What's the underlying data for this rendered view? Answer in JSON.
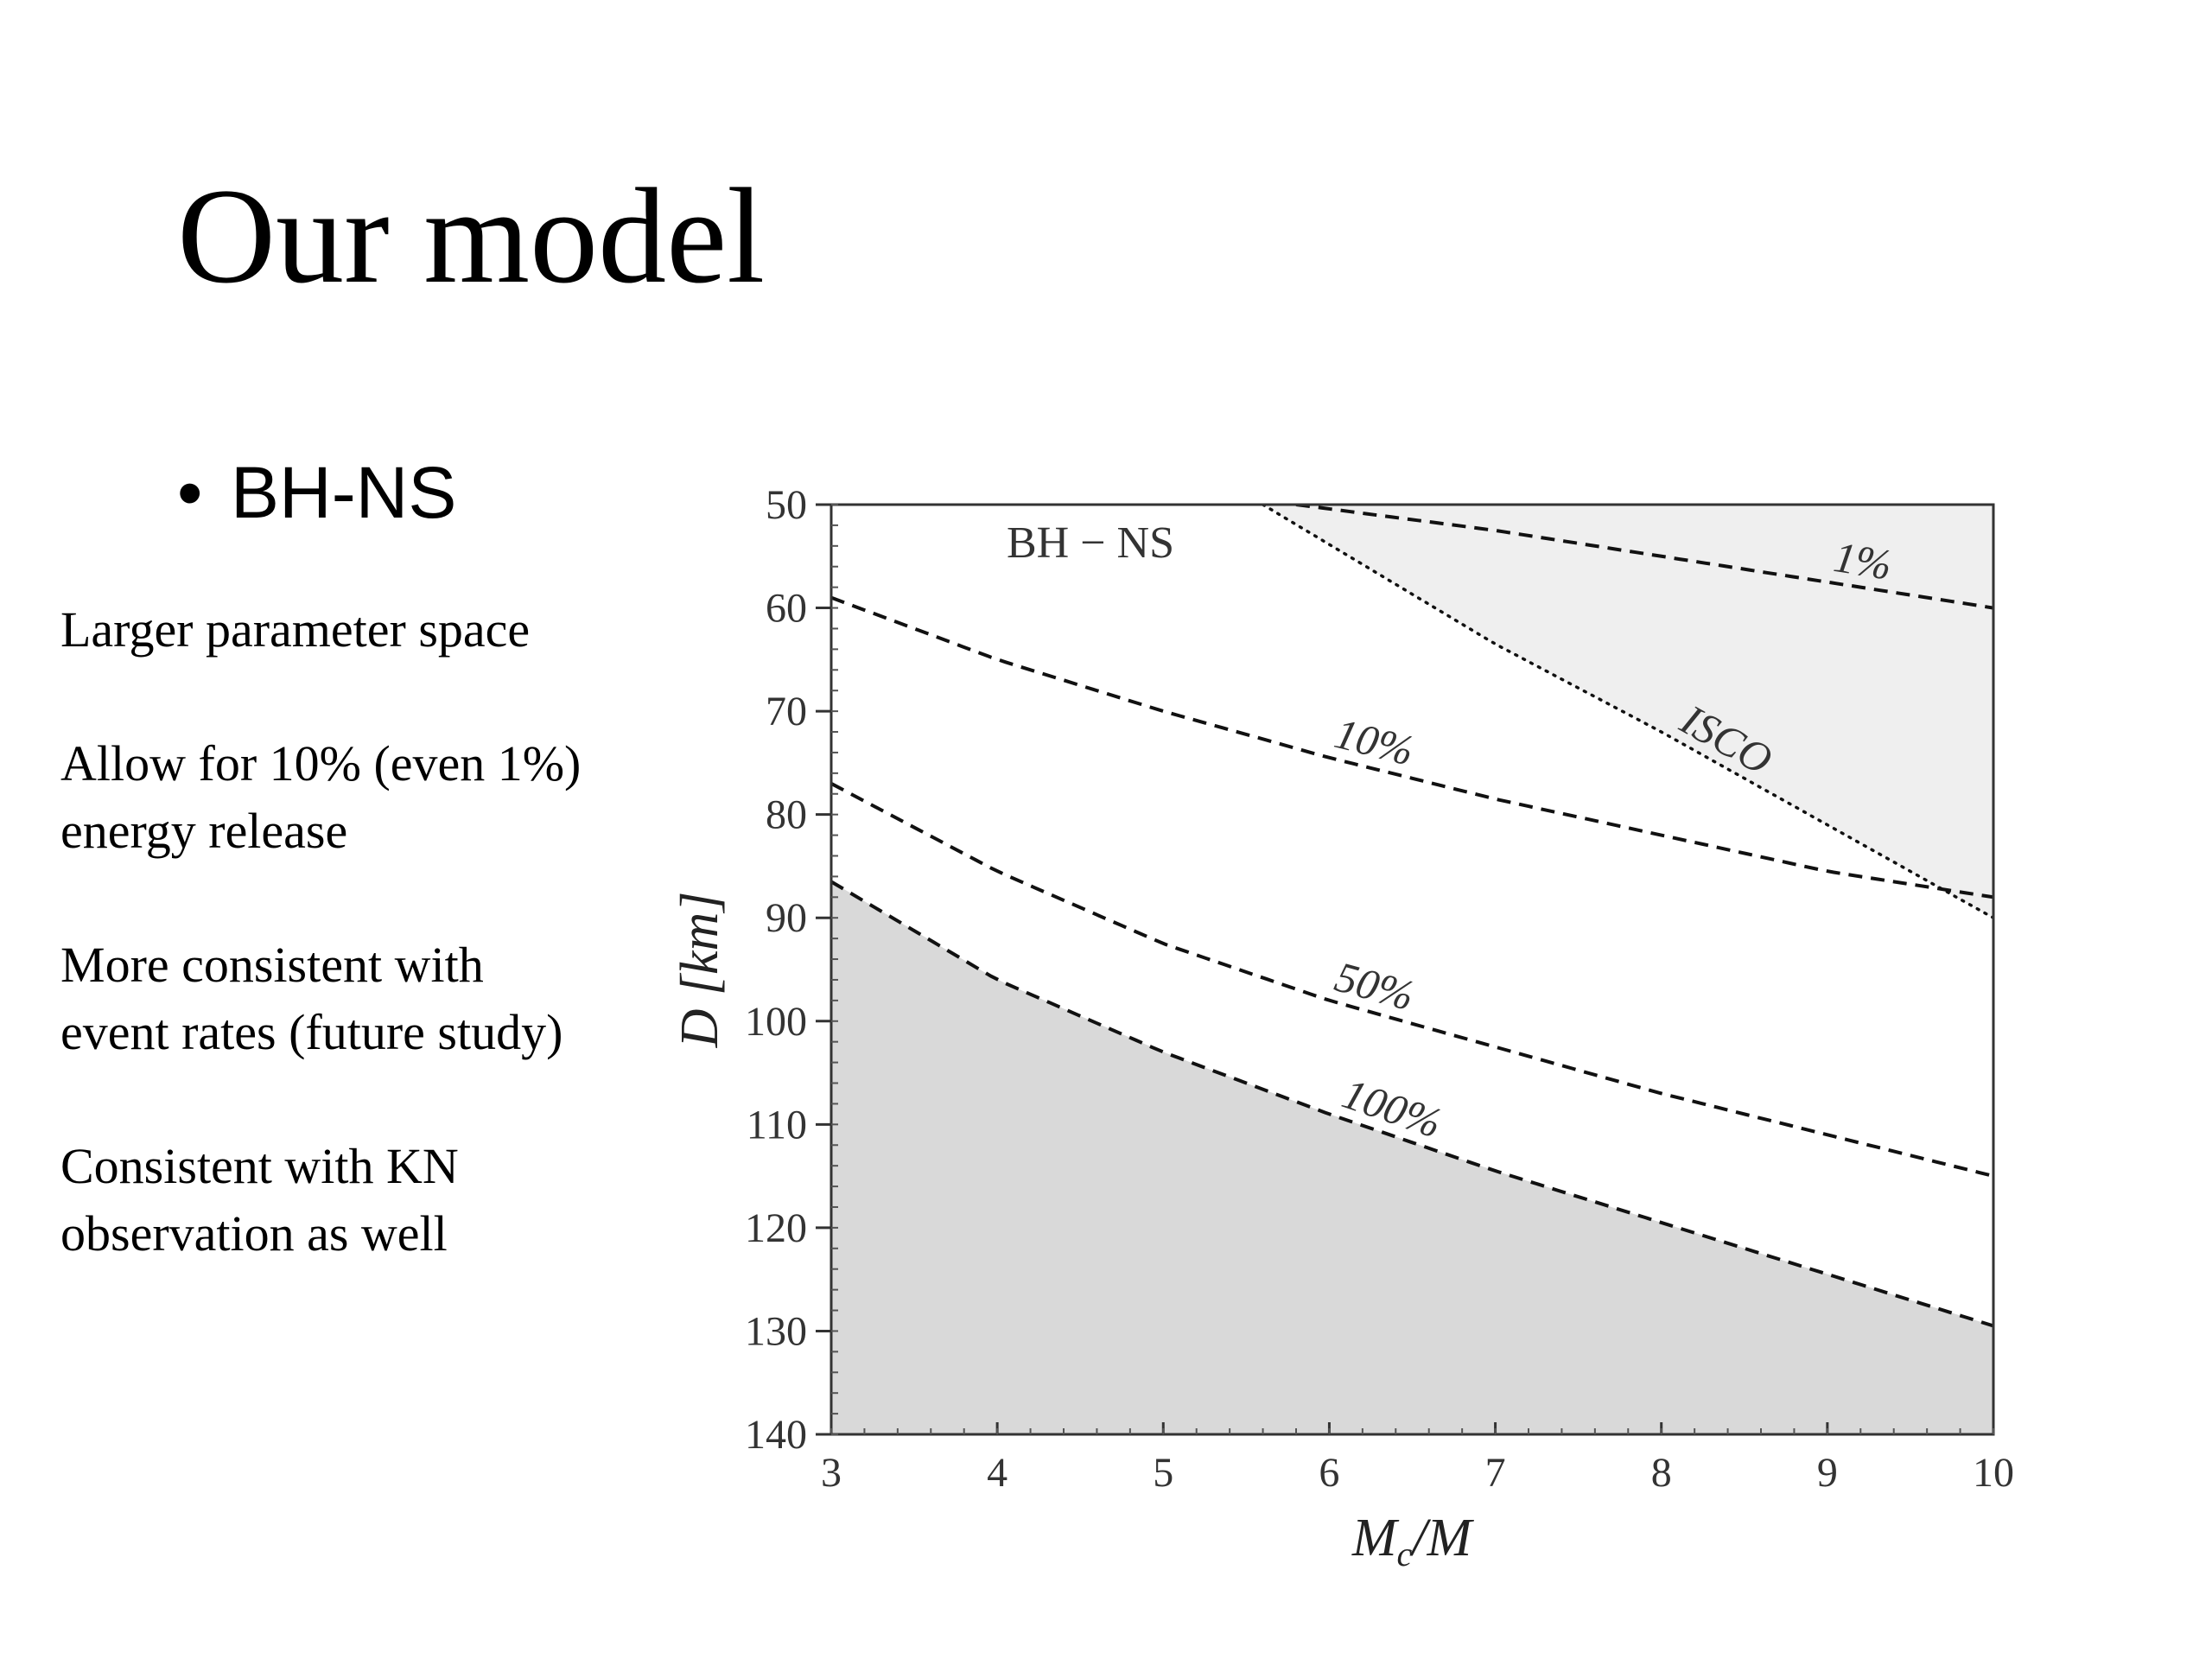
{
  "slide": {
    "title": "Our model",
    "bullet": "BH-NS",
    "bullet_symbol": "•",
    "notes": [
      {
        "lines": [
          "Larger parameter space"
        ]
      },
      {
        "lines": [
          "Allow for 10% (even 1%)",
          "energy release"
        ]
      },
      {
        "lines": [
          "More consistent with",
          "event rates (future study)"
        ]
      },
      {
        "lines": [
          "Consistent with KN",
          "observation as well"
        ]
      }
    ]
  },
  "chart_data": {
    "type": "line",
    "region_label": "BH − NS",
    "xlabel": "Mc/M",
    "ylabel": "D [km]",
    "xlim": [
      3,
      10
    ],
    "ylim": [
      50,
      140
    ],
    "y_inverted": true,
    "x_ticks": [
      3,
      4,
      5,
      6,
      7,
      8,
      9,
      10
    ],
    "y_ticks": [
      50,
      60,
      70,
      80,
      90,
      100,
      110,
      120,
      130,
      140
    ],
    "series": [
      {
        "name": "1%",
        "style": "dashed",
        "x": [
          5.8,
          7,
          8,
          9,
          10
        ],
        "y": [
          50,
          52.5,
          55,
          57.5,
          60
        ]
      },
      {
        "name": "10%",
        "style": "dashed",
        "x": [
          3,
          4,
          5,
          6,
          7,
          8,
          9,
          10
        ],
        "y": [
          59,
          65,
          70,
          74.5,
          78.5,
          82,
          85.5,
          88
        ]
      },
      {
        "name": "50%",
        "style": "dashed",
        "x": [
          3,
          4,
          5,
          6,
          7,
          8,
          9,
          10
        ],
        "y": [
          77,
          85.5,
          92.5,
          98,
          102.5,
          107,
          111,
          115
        ]
      },
      {
        "name": "100%",
        "style": "dashed",
        "x": [
          3,
          4,
          5,
          6,
          7,
          8,
          9,
          10
        ],
        "y": [
          86.5,
          96,
          103,
          109,
          114.5,
          119.5,
          124.5,
          129.5
        ]
      },
      {
        "name": "ISCO",
        "style": "dotted",
        "x": [
          5.6,
          7,
          8,
          9,
          10
        ],
        "y": [
          50,
          63.5,
          72,
          81,
          90
        ]
      }
    ],
    "shaded_regions": [
      {
        "description": "below 100% curve",
        "fill": "#d9d9d9"
      },
      {
        "description": "beyond ISCO",
        "fill": "#efefef"
      }
    ],
    "colors": {
      "curve": "#111111",
      "frame": "#333333"
    }
  }
}
